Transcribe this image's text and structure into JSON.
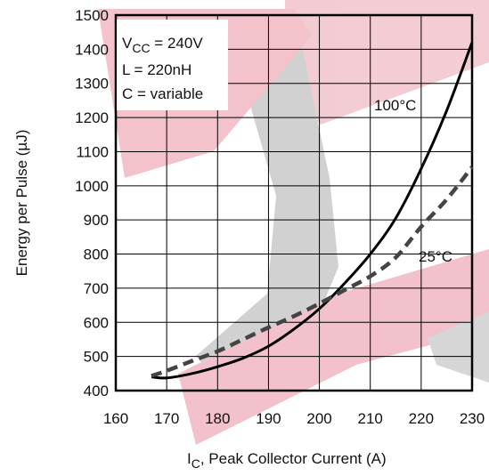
{
  "chart_data": {
    "type": "line",
    "title": "",
    "xlabel": "I",
    "xlabel_sub": "C",
    "xlabel_rest": ", Peak Collector Current (A)",
    "ylabel": "Energy per Pulse (µJ)",
    "xlim": [
      160,
      230
    ],
    "ylim": [
      400,
      1500
    ],
    "xticks": [
      "160",
      "170",
      "180",
      "190",
      "200",
      "210",
      "220",
      "230"
    ],
    "yticks": [
      "400",
      "500",
      "600",
      "700",
      "800",
      "900",
      "1000",
      "1100",
      "1200",
      "1300",
      "1400",
      "1500"
    ],
    "grid": true,
    "annotations": {
      "vcc_main": "V",
      "vcc_sub": "CC",
      "vcc_rest": " = 240V",
      "inductance": "L = 220nH",
      "capacitance": "C = variable"
    },
    "series": [
      {
        "name": "100°C",
        "style": "solid",
        "color": "#000000",
        "x": [
          167,
          170,
          175,
          180,
          185,
          190,
          195,
          200,
          205,
          210,
          215,
          220,
          225,
          230
        ],
        "y": [
          440,
          437,
          450,
          470,
          495,
          530,
          580,
          640,
          715,
          800,
          905,
          1050,
          1220,
          1420
        ]
      },
      {
        "name": "25°C",
        "style": "dashed",
        "color": "#444444",
        "x": [
          167,
          170,
          175,
          180,
          185,
          190,
          195,
          200,
          205,
          210,
          215,
          220,
          225,
          230
        ],
        "y": [
          443,
          458,
          487,
          515,
          550,
          585,
          618,
          655,
          695,
          735,
          790,
          880,
          960,
          1055
        ]
      }
    ]
  }
}
